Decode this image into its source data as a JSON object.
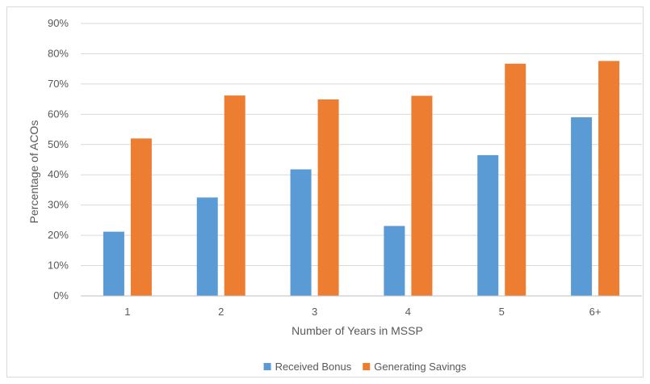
{
  "chart_data": {
    "type": "bar",
    "title": "",
    "xlabel": "Number of Years in MSSP",
    "ylabel": "Percentage of ACOs",
    "categories": [
      "1",
      "2",
      "3",
      "4",
      "5",
      "6+"
    ],
    "series": [
      {
        "name": "Received Bonus",
        "color": "#5b9bd5",
        "values": [
          21.2,
          32.5,
          41.8,
          23.1,
          46.5,
          59.0
        ]
      },
      {
        "name": "Generating Savings",
        "color": "#ed7d31",
        "values": [
          52.0,
          66.2,
          64.9,
          66.1,
          76.7,
          77.6
        ]
      }
    ],
    "ylim": [
      0,
      90
    ],
    "yticks": [
      "0%",
      "10%",
      "20%",
      "30%",
      "40%",
      "50%",
      "60%",
      "70%",
      "80%",
      "90%"
    ],
    "grid": true,
    "legend": "bottom-center"
  }
}
